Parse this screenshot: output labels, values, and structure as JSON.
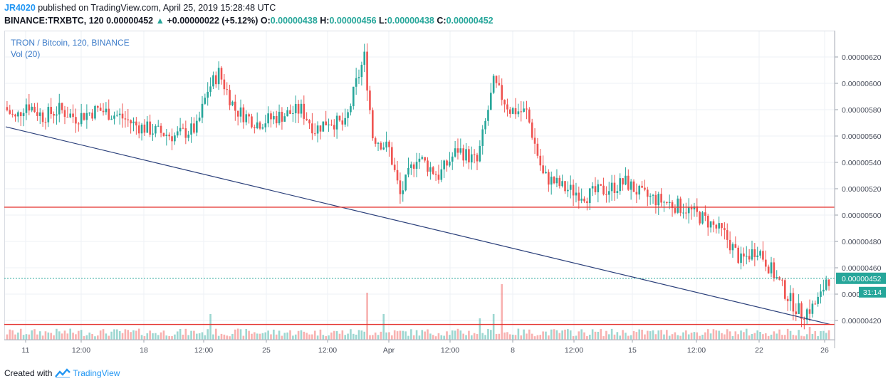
{
  "header": {
    "author": "JR4020",
    "published": "published on TradingView.com, April 25, 2019 15:28:48 UTC",
    "symbol": "BINANCE:TRXBTC, 120",
    "last": "0.00000452",
    "change_arrow": "▲",
    "change": "+0.00000022 (+5.12%)",
    "o_label": "O:",
    "o": "0.00000438",
    "h_label": "H:",
    "h": "0.00000456",
    "l_label": "L:",
    "l": "0.00000438",
    "c_label": "C:",
    "c": "0.00000452"
  },
  "legend": {
    "title": "TRON / Bitcoin, 120, BINANCE",
    "vol": "Vol (20)"
  },
  "footer": {
    "created": "Created with",
    "brand": "TradingView"
  },
  "colors": {
    "up": "#26a69a",
    "down": "#ef5350",
    "trend": "#2a3f7a",
    "level": "#e53935",
    "grid": "#eef1f5"
  },
  "chart_data": {
    "type": "candlestick",
    "title": "TRON / Bitcoin, 120, BINANCE",
    "ylim": [
      4.1e-06,
      6.4e-06
    ],
    "y_ticks": [
      "0.00000620",
      "0.00000600",
      "0.00000580",
      "0.00000560",
      "0.00000540",
      "0.00000520",
      "0.00000500",
      "0.00000480",
      "0.00000460",
      "0.00000440",
      "0.00000420"
    ],
    "x_ticks": [
      "11",
      "12:00",
      "18",
      "12:00",
      "25",
      "12:00",
      "Apr",
      "12:00",
      "8",
      "12:00",
      "15",
      "12:00",
      "22",
      "26"
    ],
    "last_price_label": "0.00000452",
    "countdown": "31:14",
    "price_path": [
      {
        "t": 0,
        "p": 5.82e-06
      },
      {
        "t": 4,
        "p": 5.73e-06
      },
      {
        "t": 8,
        "p": 5.85e-06
      },
      {
        "t": 14,
        "p": 5.75e-06
      },
      {
        "t": 20,
        "p": 5.8e-06
      },
      {
        "t": 26,
        "p": 5.74e-06
      },
      {
        "t": 34,
        "p": 5.8e-06
      },
      {
        "t": 42,
        "p": 5.75e-06
      },
      {
        "t": 48,
        "p": 5.68e-06
      },
      {
        "t": 56,
        "p": 5.63e-06
      },
      {
        "t": 62,
        "p": 5.6e-06
      },
      {
        "t": 70,
        "p": 5.66e-06
      },
      {
        "t": 74,
        "p": 5.95e-06
      },
      {
        "t": 78,
        "p": 6.08e-06
      },
      {
        "t": 84,
        "p": 5.8e-06
      },
      {
        "t": 92,
        "p": 5.7e-06
      },
      {
        "t": 100,
        "p": 5.75e-06
      },
      {
        "t": 108,
        "p": 5.8e-06
      },
      {
        "t": 113,
        "p": 5.65e-06
      },
      {
        "t": 118,
        "p": 5.72e-06
      },
      {
        "t": 124,
        "p": 5.68e-06
      },
      {
        "t": 128,
        "p": 6e-06
      },
      {
        "t": 131,
        "p": 6.2e-06
      },
      {
        "t": 134,
        "p": 5.6e-06
      },
      {
        "t": 140,
        "p": 5.5e-06
      },
      {
        "t": 144,
        "p": 5.15e-06
      },
      {
        "t": 150,
        "p": 5.45e-06
      },
      {
        "t": 158,
        "p": 5.3e-06
      },
      {
        "t": 165,
        "p": 5.5e-06
      },
      {
        "t": 172,
        "p": 5.4e-06
      },
      {
        "t": 178,
        "p": 6e-06
      },
      {
        "t": 184,
        "p": 5.8e-06
      },
      {
        "t": 190,
        "p": 5.78e-06
      },
      {
        "t": 196,
        "p": 5.3e-06
      },
      {
        "t": 204,
        "p": 5.2e-06
      },
      {
        "t": 212,
        "p": 5.15e-06
      },
      {
        "t": 220,
        "p": 5.2e-06
      },
      {
        "t": 226,
        "p": 5.25e-06
      },
      {
        "t": 232,
        "p": 5.15e-06
      },
      {
        "t": 240,
        "p": 5.1e-06
      },
      {
        "t": 248,
        "p": 5.05e-06
      },
      {
        "t": 256,
        "p": 4.95e-06
      },
      {
        "t": 262,
        "p": 4.85e-06
      },
      {
        "t": 268,
        "p": 4.65e-06
      },
      {
        "t": 274,
        "p": 4.75e-06
      },
      {
        "t": 280,
        "p": 4.55e-06
      },
      {
        "t": 286,
        "p": 4.35e-06
      },
      {
        "t": 290,
        "p": 4.25e-06
      },
      {
        "t": 294,
        "p": 4.3e-06
      },
      {
        "t": 297,
        "p": 4.38e-06
      },
      {
        "t": 299,
        "p": 4.52e-06
      }
    ],
    "volume_spikes": [
      {
        "t": 74,
        "v": 3
      },
      {
        "t": 131,
        "v": 5.5
      },
      {
        "t": 137,
        "v": 3
      },
      {
        "t": 172,
        "v": 2.5
      },
      {
        "t": 180,
        "v": 6.5
      },
      {
        "t": 177,
        "v": 3
      },
      {
        "t": 292,
        "v": 1.5
      }
    ],
    "lines": [
      {
        "name": "descending trendline",
        "from": {
          "t": 0,
          "p": 5.67e-06
        },
        "to": {
          "t": 300,
          "p": 4.17e-06
        }
      },
      {
        "name": "resistance level",
        "price": 5.06e-06
      },
      {
        "name": "support level",
        "price": 4.17e-06
      }
    ]
  }
}
